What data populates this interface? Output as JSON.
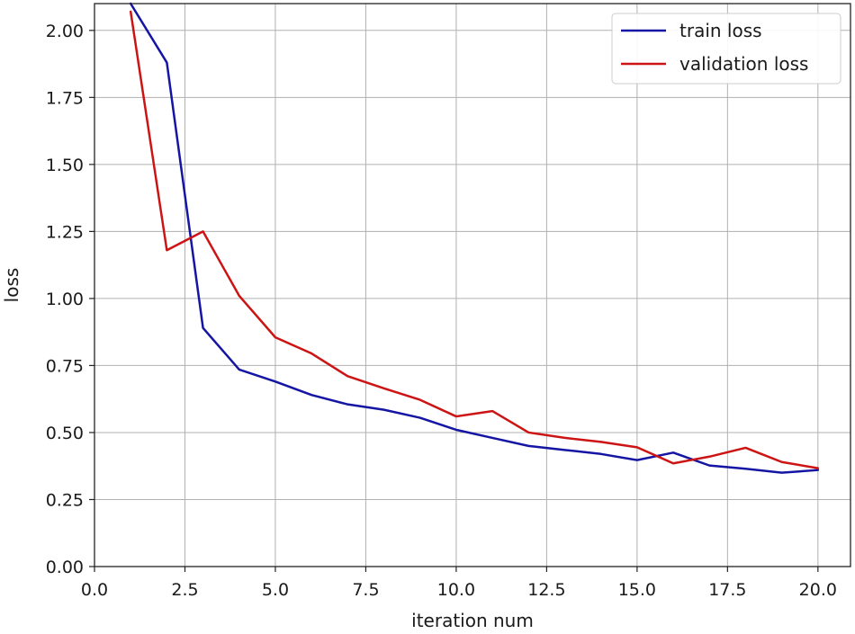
{
  "chart_data": {
    "type": "line",
    "title": "",
    "xlabel": "iteration num",
    "ylabel": "loss",
    "xlim": [
      0,
      20.9
    ],
    "ylim": [
      0,
      2.1
    ],
    "xticks": [
      "0.0",
      "2.5",
      "5.0",
      "7.5",
      "10.0",
      "12.5",
      "15.0",
      "17.5",
      "20.0"
    ],
    "yticks": [
      "0.00",
      "0.25",
      "0.50",
      "0.75",
      "1.00",
      "1.25",
      "1.50",
      "1.75",
      "2.00"
    ],
    "grid": true,
    "legend": "top-right",
    "x": [
      1,
      2,
      3,
      4,
      5,
      6,
      7,
      8,
      9,
      10,
      11,
      12,
      13,
      14,
      15,
      16,
      17,
      18,
      19,
      20
    ],
    "series": [
      {
        "name": "train loss",
        "color": "#1515a3",
        "values": [
          2.1,
          1.88,
          0.89,
          0.735,
          0.69,
          0.64,
          0.605,
          0.585,
          0.555,
          0.51,
          0.48,
          0.45,
          0.435,
          0.42,
          0.397,
          0.425,
          0.377,
          0.365,
          0.35,
          0.36
        ]
      },
      {
        "name": "validation loss",
        "color": "#cc1414",
        "values": [
          2.07,
          1.18,
          1.25,
          1.01,
          0.855,
          0.795,
          0.71,
          0.665,
          0.622,
          0.56,
          0.58,
          0.5,
          0.48,
          0.465,
          0.445,
          0.385,
          0.41,
          0.443,
          0.39,
          0.367
        ]
      }
    ]
  }
}
